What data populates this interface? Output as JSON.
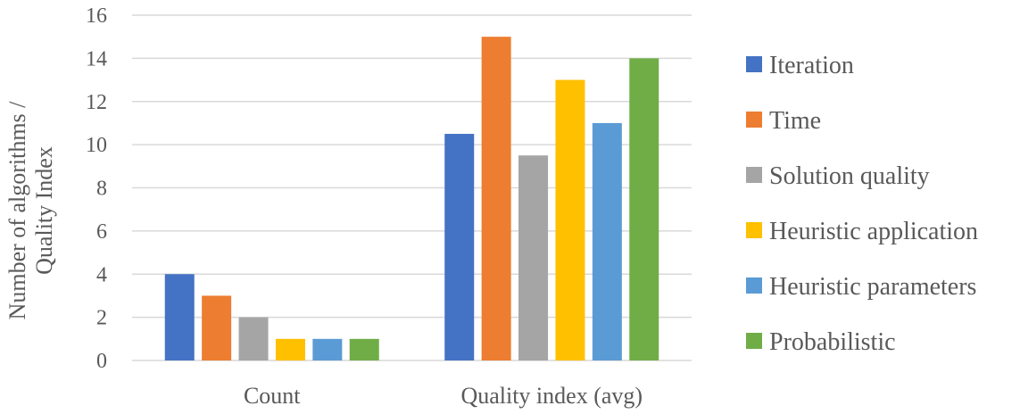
{
  "chart_data": {
    "type": "bar",
    "title": "",
    "xlabel": "",
    "ylabel_lines": [
      "Number of algorithms /",
      "Quality Index"
    ],
    "categories": [
      "Count",
      "Quality index (avg)"
    ],
    "ylim": [
      0,
      16
    ],
    "yticks": [
      0,
      2,
      4,
      6,
      8,
      10,
      12,
      14,
      16
    ],
    "grid": true,
    "legend_position": "right",
    "series": [
      {
        "name": "Iteration",
        "color": "#4472c4",
        "values": [
          4,
          10.5
        ]
      },
      {
        "name": "Time",
        "color": "#ed7d31",
        "values": [
          3,
          15
        ]
      },
      {
        "name": "Solution quality",
        "color": "#a5a5a5",
        "values": [
          2,
          9.5
        ]
      },
      {
        "name": "Heuristic application",
        "color": "#ffc000",
        "values": [
          1,
          13
        ]
      },
      {
        "name": "Heuristic parameters",
        "color": "#5b9bd5",
        "values": [
          1,
          11
        ]
      },
      {
        "name": "Probabilistic",
        "color": "#70ad47",
        "values": [
          1,
          14
        ]
      }
    ]
  }
}
